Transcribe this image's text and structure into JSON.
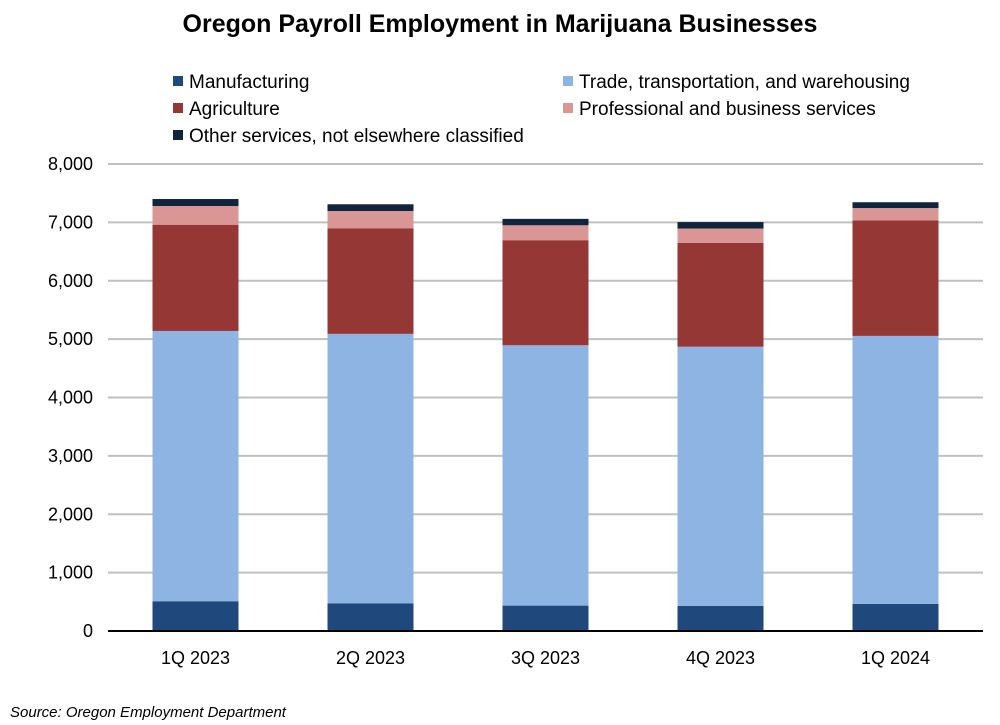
{
  "chart_data": {
    "type": "bar",
    "stacked": true,
    "title": "Oregon Payroll Employment in Marijuana Businesses",
    "source": "Source: Oregon Employment Department",
    "categories": [
      "1Q 2023",
      "2Q 2023",
      "3Q 2023",
      "4Q 2023",
      "1Q 2024"
    ],
    "series": [
      {
        "name": "Manufacturing",
        "color": "#1F497D",
        "values": [
          510,
          475,
          435,
          430,
          465
        ]
      },
      {
        "name": "Trade, transportation, and warehousing",
        "color": "#8EB4E3",
        "values": [
          4630,
          4615,
          4460,
          4440,
          4590
        ]
      },
      {
        "name": "Agriculture",
        "color": "#953735",
        "values": [
          1820,
          1805,
          1800,
          1780,
          1980
        ]
      },
      {
        "name": "Professional and business services",
        "color": "#D99694",
        "values": [
          320,
          300,
          255,
          245,
          210
        ]
      },
      {
        "name": "Other services, not elsewhere classified",
        "color": "#10243E",
        "values": [
          120,
          115,
          110,
          110,
          100
        ]
      }
    ],
    "ylim": [
      0,
      8000
    ],
    "yticks": [
      0,
      1000,
      2000,
      3000,
      4000,
      5000,
      6000,
      7000,
      8000
    ],
    "ytick_labels": [
      "0",
      "1,000",
      "2,000",
      "3,000",
      "4,000",
      "5,000",
      "6,000",
      "7,000",
      "8,000"
    ],
    "grid": true,
    "legend_placement": "top"
  }
}
